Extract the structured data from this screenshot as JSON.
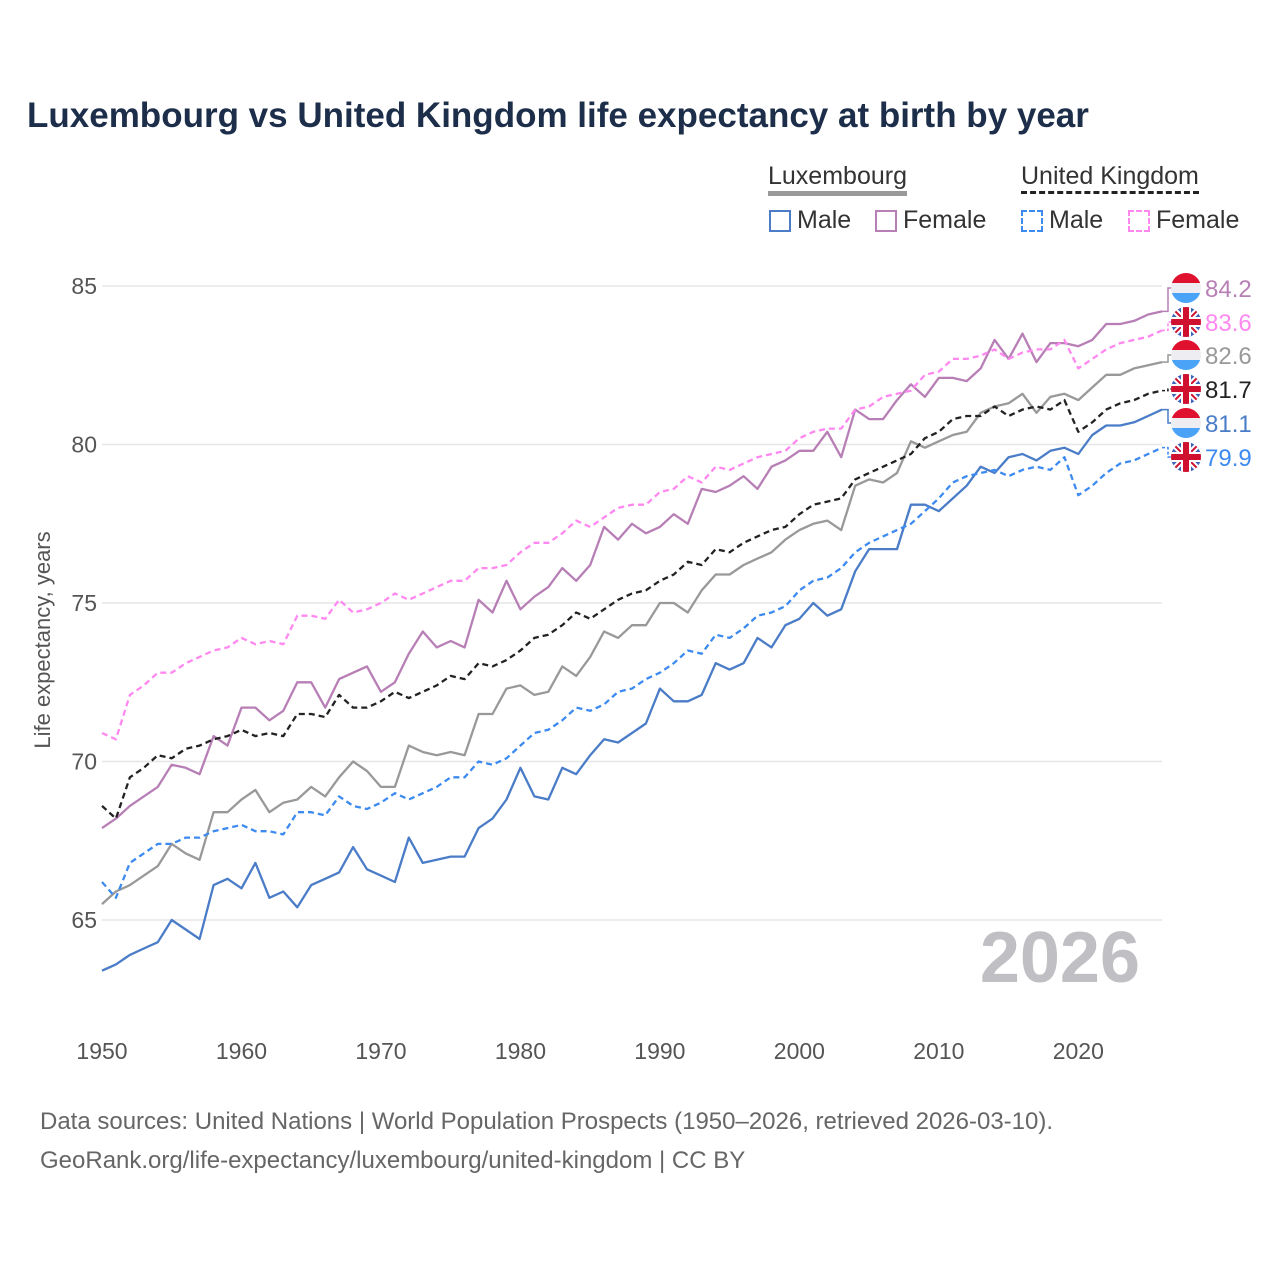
{
  "chart_data": {
    "type": "line",
    "title": "Luxembourg vs United Kingdom life expectancy at birth by year",
    "xlabel": "",
    "ylabel": "Life expectancy, years",
    "xlim": [
      1950,
      2026
    ],
    "ylim": [
      62.5,
      86
    ],
    "x_ticks": [
      1950,
      1960,
      1970,
      1980,
      1990,
      2000,
      2010,
      2020
    ],
    "y_ticks": [
      65,
      70,
      75,
      80,
      85
    ],
    "grid": true,
    "year_watermark": "2026",
    "legend": {
      "placement": "top-right",
      "groups": [
        {
          "label": "Luxembourg",
          "items": [
            "Male",
            "Female"
          ]
        },
        {
          "label": "United Kingdom",
          "items": [
            "Male",
            "Female"
          ]
        }
      ]
    },
    "x_start": 1950,
    "series": [
      {
        "name": "Luxembourg Female",
        "color": "#b77fb5",
        "dash": false,
        "end_label": "84.2",
        "flag": "luxembourg",
        "values": [
          67.9,
          68.2,
          68.6,
          68.9,
          69.2,
          69.9,
          69.8,
          69.6,
          70.8,
          70.5,
          71.7,
          71.7,
          71.3,
          71.6,
          72.5,
          72.5,
          71.7,
          72.6,
          72.8,
          73.0,
          72.2,
          72.5,
          73.4,
          74.1,
          73.6,
          73.8,
          73.6,
          75.1,
          74.7,
          75.7,
          74.8,
          75.2,
          75.5,
          76.1,
          75.7,
          76.2,
          77.4,
          77.0,
          77.5,
          77.2,
          77.4,
          77.8,
          77.5,
          78.6,
          78.5,
          78.7,
          79.0,
          78.6,
          79.3,
          79.5,
          79.8,
          79.8,
          80.4,
          79.6,
          81.1,
          80.8,
          80.8,
          81.4,
          81.9,
          81.5,
          82.1,
          82.1,
          82.0,
          82.4,
          83.3,
          82.7,
          83.5,
          82.6,
          83.2,
          83.2,
          83.1,
          83.3,
          83.8,
          83.8,
          83.9,
          84.1,
          84.2
        ]
      },
      {
        "name": "United Kingdom Female",
        "color": "#ff88f0",
        "dash": true,
        "end_label": "83.6",
        "flag": "uk",
        "values": [
          70.9,
          70.7,
          72.1,
          72.4,
          72.8,
          72.8,
          73.1,
          73.3,
          73.5,
          73.6,
          73.9,
          73.7,
          73.8,
          73.7,
          74.6,
          74.6,
          74.5,
          75.1,
          74.7,
          74.8,
          75.0,
          75.3,
          75.1,
          75.3,
          75.5,
          75.7,
          75.7,
          76.1,
          76.1,
          76.2,
          76.6,
          76.9,
          76.9,
          77.2,
          77.6,
          77.4,
          77.7,
          78.0,
          78.1,
          78.1,
          78.5,
          78.6,
          79.0,
          78.8,
          79.3,
          79.2,
          79.4,
          79.6,
          79.7,
          79.8,
          80.2,
          80.4,
          80.5,
          80.5,
          81.1,
          81.2,
          81.5,
          81.6,
          81.7,
          82.2,
          82.3,
          82.7,
          82.7,
          82.8,
          83.0,
          82.7,
          82.9,
          83.0,
          83.0,
          83.3,
          82.4,
          82.7,
          83.0,
          83.2,
          83.3,
          83.4,
          83.6
        ]
      },
      {
        "name": "Luxembourg Total",
        "color": "#999999",
        "dash": false,
        "end_label": "82.6",
        "flag": "luxembourg",
        "values": [
          65.5,
          65.9,
          66.1,
          66.4,
          66.7,
          67.4,
          67.1,
          66.9,
          68.4,
          68.4,
          68.8,
          69.1,
          68.4,
          68.7,
          68.8,
          69.2,
          68.9,
          69.5,
          70.0,
          69.7,
          69.2,
          69.2,
          70.5,
          70.3,
          70.2,
          70.3,
          70.2,
          71.5,
          71.5,
          72.3,
          72.4,
          72.1,
          72.2,
          73.0,
          72.7,
          73.3,
          74.1,
          73.9,
          74.3,
          74.3,
          75.0,
          75.0,
          74.7,
          75.4,
          75.9,
          75.9,
          76.2,
          76.4,
          76.6,
          77.0,
          77.3,
          77.5,
          77.6,
          77.3,
          78.7,
          78.9,
          78.8,
          79.1,
          80.1,
          79.9,
          80.1,
          80.3,
          80.4,
          81.0,
          81.2,
          81.3,
          81.6,
          81.0,
          81.5,
          81.6,
          81.4,
          81.8,
          82.2,
          82.2,
          82.4,
          82.5,
          82.6
        ]
      },
      {
        "name": "United Kingdom Total",
        "color": "#222222",
        "dash": true,
        "end_label": "81.7",
        "flag": "uk",
        "values": [
          68.6,
          68.2,
          69.5,
          69.8,
          70.2,
          70.1,
          70.4,
          70.5,
          70.7,
          70.8,
          71.0,
          70.8,
          70.9,
          70.8,
          71.5,
          71.5,
          71.4,
          72.1,
          71.7,
          71.7,
          71.9,
          72.2,
          72.0,
          72.2,
          72.4,
          72.7,
          72.6,
          73.1,
          73.0,
          73.2,
          73.5,
          73.9,
          74.0,
          74.3,
          74.7,
          74.5,
          74.8,
          75.1,
          75.3,
          75.4,
          75.7,
          75.9,
          76.3,
          76.2,
          76.7,
          76.6,
          76.9,
          77.1,
          77.3,
          77.4,
          77.8,
          78.1,
          78.2,
          78.3,
          78.9,
          79.1,
          79.3,
          79.5,
          79.7,
          80.2,
          80.4,
          80.8,
          80.9,
          80.9,
          81.2,
          80.9,
          81.1,
          81.2,
          81.1,
          81.4,
          80.4,
          80.7,
          81.1,
          81.3,
          81.4,
          81.6,
          81.7
        ]
      },
      {
        "name": "Luxembourg Male",
        "color": "#4a7cc7",
        "dash": false,
        "end_label": "81.1",
        "flag": "luxembourg",
        "values": [
          63.4,
          63.6,
          63.9,
          64.1,
          64.3,
          65.0,
          64.7,
          64.4,
          66.1,
          66.3,
          66.0,
          66.8,
          65.7,
          65.9,
          65.4,
          66.1,
          66.3,
          66.5,
          67.3,
          66.6,
          66.4,
          66.2,
          67.6,
          66.8,
          66.9,
          67.0,
          67.0,
          67.9,
          68.2,
          68.8,
          69.8,
          68.9,
          68.8,
          69.8,
          69.6,
          70.2,
          70.7,
          70.6,
          70.9,
          71.2,
          72.3,
          71.9,
          71.9,
          72.1,
          73.1,
          72.9,
          73.1,
          73.9,
          73.6,
          74.3,
          74.5,
          75.0,
          74.6,
          74.8,
          76.0,
          76.7,
          76.7,
          76.7,
          78.1,
          78.1,
          77.9,
          78.3,
          78.7,
          79.3,
          79.1,
          79.6,
          79.7,
          79.5,
          79.8,
          79.9,
          79.7,
          80.3,
          80.6,
          80.6,
          80.7,
          80.9,
          81.1
        ]
      },
      {
        "name": "United Kingdom Male",
        "color": "#3d8af0",
        "dash": true,
        "end_label": "79.9",
        "flag": "uk",
        "values": [
          66.2,
          65.7,
          66.8,
          67.1,
          67.4,
          67.4,
          67.6,
          67.6,
          67.8,
          67.9,
          68.0,
          67.8,
          67.8,
          67.7,
          68.4,
          68.4,
          68.3,
          68.9,
          68.6,
          68.5,
          68.7,
          69.0,
          68.8,
          69.0,
          69.2,
          69.5,
          69.5,
          70.0,
          69.9,
          70.1,
          70.5,
          70.9,
          71.0,
          71.3,
          71.7,
          71.6,
          71.8,
          72.2,
          72.3,
          72.6,
          72.8,
          73.1,
          73.5,
          73.4,
          74.0,
          73.9,
          74.2,
          74.6,
          74.7,
          74.9,
          75.4,
          75.7,
          75.8,
          76.1,
          76.6,
          76.9,
          77.1,
          77.3,
          77.5,
          77.9,
          78.3,
          78.8,
          79.0,
          79.1,
          79.2,
          79.0,
          79.2,
          79.3,
          79.2,
          79.6,
          78.4,
          78.7,
          79.1,
          79.4,
          79.5,
          79.7,
          79.9
        ]
      }
    ],
    "legend_colors": {
      "lux_male": "#4a7cc7",
      "lux_female": "#b77fb5",
      "uk_male": "#3d8af0",
      "uk_female": "#ff88f0",
      "lux_group": "#999999",
      "uk_group": "#222222"
    }
  },
  "footer": {
    "line1": "Data sources: United Nations | World Population Prospects (1950–2026, retrieved 2026-03-10).",
    "line2": "GeoRank.org/life-expectancy/luxembourg/united-kingdom | CC BY"
  }
}
